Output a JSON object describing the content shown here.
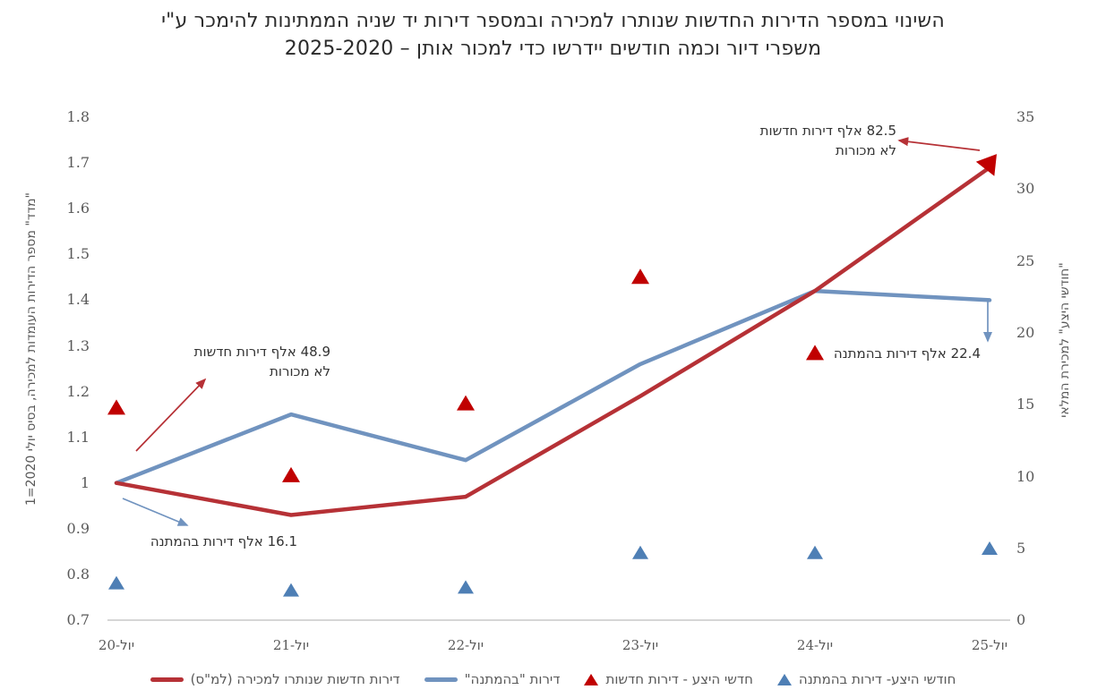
{
  "title": {
    "line1": "השינוי במספר הדירות החדשות שנותרו למכירה ובמספר דירות יד שניה הממתינות להימכר ע\"י",
    "line2": "משפרי דיור וכמה חודשים יידרשו כדי למכור אותן – 2025-2020"
  },
  "axes": {
    "left": {
      "title": "\"מדד\" מספר הדירות העומדות למכירה, בסיס יולי 2020=1",
      "ticks": [
        "1.8",
        "1.7",
        "1.6",
        "1.5",
        "1.4",
        "1.3",
        "1.2",
        "1.1",
        "1",
        "0.9",
        "0.8",
        "0.7"
      ]
    },
    "right": {
      "title": "\"חודשי היצע\" למכירת המלאי",
      "ticks": [
        "35",
        "30",
        "25",
        "20",
        "15",
        "10",
        "5",
        "0"
      ]
    }
  },
  "legend": {
    "items": [
      {
        "label": "דירות חדשות שנותרו למכירה (למ\"ס)",
        "marker": "line",
        "color": "#b63136"
      },
      {
        "label": "דירות \"בהמתנה\"",
        "marker": "line",
        "color": "#7093bf"
      },
      {
        "label": "חדשי היצע - דירות חדשות",
        "marker": "triangle",
        "color": "#c00000"
      },
      {
        "label": "חודשי היצע- דירות בהמתנה",
        "marker": "triangle",
        "color": "#4e7fb5"
      }
    ]
  },
  "chart_data": {
    "type": "line",
    "x_categories": [
      "יול-20",
      "יול-21",
      "יול-22",
      "יול-23",
      "יול-24",
      "יול-25"
    ],
    "left_axis": {
      "min": 0.7,
      "max": 1.8,
      "step": 0.1,
      "label": "\"מדד\" מספר הדירות העומדות למכירה, בסיס יולי 2020=1"
    },
    "right_axis": {
      "min": 0,
      "max": 35,
      "step": 5,
      "label": "\"חודשי היצע\" למכירת המלאי"
    },
    "grid": false,
    "legend_position": "bottom",
    "series": [
      {
        "name": "דירות חדשות שנותרו למכירה (למ\"ס)",
        "type": "line",
        "axis": "left",
        "color": "#b63136",
        "values": [
          1.0,
          0.93,
          0.97,
          1.19,
          1.42,
          1.69
        ]
      },
      {
        "name": "דירות \"בהמתנה\"",
        "type": "line",
        "axis": "left",
        "color": "#7093bf",
        "values": [
          1.0,
          1.15,
          1.05,
          1.26,
          1.42,
          1.4
        ]
      },
      {
        "name": "חדשי היצע - דירות חדשות",
        "type": "triangle",
        "axis": "right",
        "color": "#c00000",
        "values": [
          14.7,
          10.0,
          15.0,
          23.8,
          18.5,
          31.8
        ]
      },
      {
        "name": "חודשי היצע- דירות בהמתנה",
        "type": "triangle",
        "axis": "right",
        "color": "#4e7fb5",
        "values": [
          2.5,
          2.0,
          2.2,
          4.6,
          4.6,
          4.9
        ]
      }
    ],
    "annotations": [
      {
        "text": "82.5 אלף דירות חדשות",
        "text2": "לא מכורות",
        "target": "קצה הקו האדום, יול-25",
        "arrow_color": "#b63136"
      },
      {
        "text": "48.9 אלף דירות חדשות",
        "text2": "לא מכורות",
        "target": "תחילת הקו האדום, יול-20",
        "arrow_color": "#b63136"
      },
      {
        "text": "16.1 אלף דירות בהמתנה",
        "target": "תחילת הקו הכחול, יול-20",
        "arrow_color": "#7093bf"
      },
      {
        "text": "22.4 אלף דירות בהמתנה",
        "target": "קצה הקו הכחול, יול-25",
        "arrow_color": "#7093bf"
      }
    ]
  }
}
